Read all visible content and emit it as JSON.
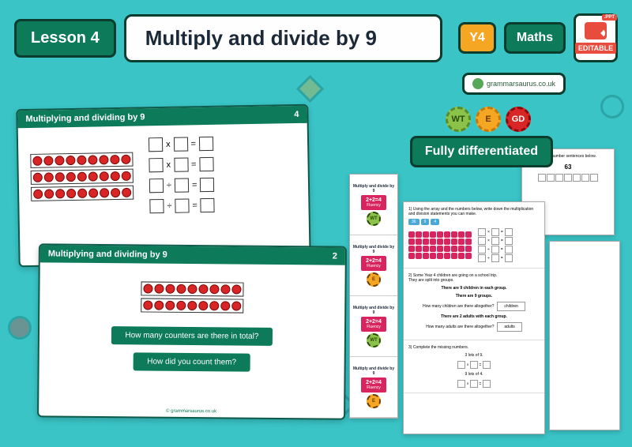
{
  "header": {
    "lesson_label": "Lesson 4",
    "title": "Multiply and divide by 9",
    "year": "Y4",
    "subject": "Maths",
    "ppt_tag": ".PPT",
    "editable": "EDITABLE",
    "brand": "grammarsaurus.co.uk"
  },
  "diff": {
    "wt": "WT",
    "e": "E",
    "gd": "GD",
    "label": "Fully differentiated"
  },
  "slide1": {
    "title": "Multiplying and dividing by 9",
    "page": "4",
    "array": {
      "rows": 3,
      "cols": 9
    },
    "ops": [
      "x",
      "x",
      "÷",
      "÷"
    ],
    "eq": "="
  },
  "slide2": {
    "title": "Multiplying and dividing by 9",
    "page": "2",
    "array": {
      "rows": 2,
      "cols": 9
    },
    "q1": "How many counters are there in total?",
    "q2": "How did you count them?",
    "footer": "© grammarsaurus.co.uk"
  },
  "ws1": {
    "section_title": "Multiply and divide by 9",
    "fluency_eq": "2+2=4",
    "fluency_label": "Fluency",
    "levels": [
      "WT",
      "E",
      "WT",
      "E"
    ]
  },
  "ws2": {
    "q1": "1) Using the array and the numbers below, write down the multiplication and division statements you can make.",
    "nums": [
      "36",
      "9",
      "4"
    ],
    "array": {
      "rows": 4,
      "cols": 9
    },
    "q2_a": "2) Some Year 4 children are going on a school trip.",
    "q2_b": "They are split into groups.",
    "q2_c": "There are 9 children in each group.",
    "q2_d": "There are 9 groups.",
    "q2_e": "How many children are there altogether?",
    "q2_ans1": "children",
    "q2_f": "There are 2 adults with each group.",
    "q2_g": "How many adults are there altogether?",
    "q2_ans2": "adults",
    "q3": "3) Complete the missing numbers.",
    "q3_a": "3 lots of 9.",
    "q3_b": "9 lots of 4."
  },
  "ws3": {
    "text": "Complete the number sentences below.",
    "num": "63"
  },
  "colors": {
    "bg": "#3ac4c6",
    "primary": "#0d7a5a",
    "accent_red": "#d82525",
    "accent_orange": "#f5a623",
    "accent_pink": "#d82560",
    "dark": "#0a3d2e"
  }
}
